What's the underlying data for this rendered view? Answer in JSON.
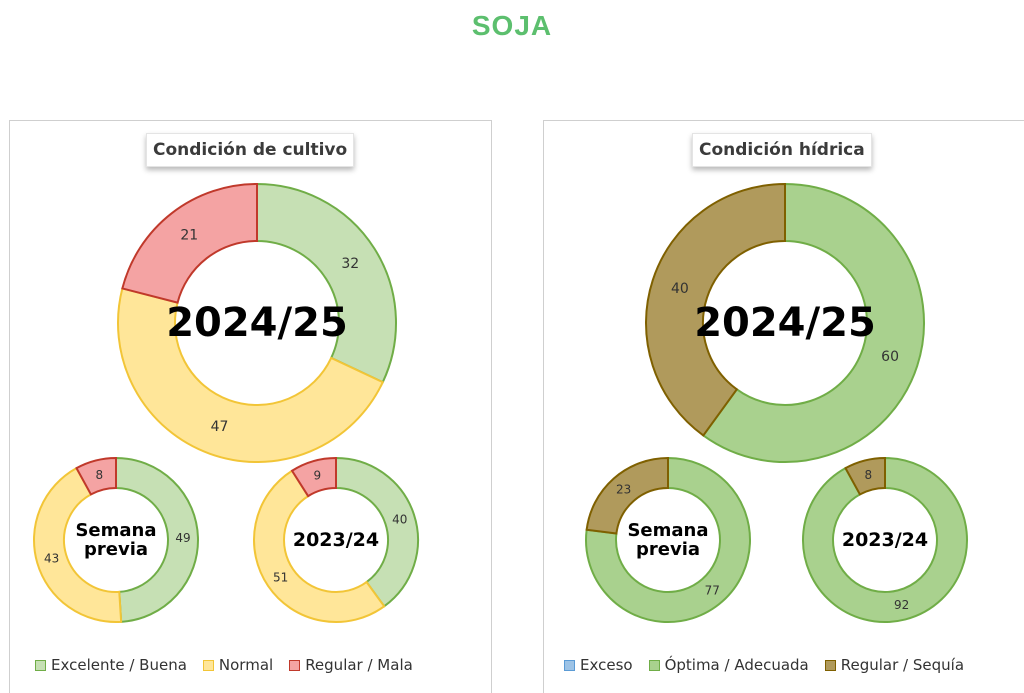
{
  "title": "SOJA",
  "colors": {
    "title": "#5cbf6e"
  },
  "chart_data": [
    {
      "type": "pie",
      "title": "Condición de cultivo",
      "legend_position": "bottom",
      "legend": [
        {
          "label": "Excelente / Buena",
          "fill": "#c6e0b4",
          "stroke": "#70ad47"
        },
        {
          "label": "Normal",
          "fill": "#ffe699",
          "stroke": "#f2c537"
        },
        {
          "label": "Regular / Mala",
          "fill": "#f4a3a3",
          "stroke": "#c0392b"
        }
      ],
      "donuts": [
        {
          "center_label": [
            "2024/25"
          ],
          "slices": [
            {
              "category": "Excelente / Buena",
              "value": 32,
              "label": "32"
            },
            {
              "category": "Normal",
              "value": 47,
              "label": "47"
            },
            {
              "category": "Regular / Mala",
              "value": 21,
              "label": "21"
            }
          ]
        },
        {
          "center_label": [
            "Semana",
            "previa"
          ],
          "slices": [
            {
              "category": "Excelente / Buena",
              "value": 49,
              "label": "49"
            },
            {
              "category": "Normal",
              "value": 43,
              "label": "43"
            },
            {
              "category": "Regular / Mala",
              "value": 8,
              "label": "8"
            }
          ]
        },
        {
          "center_label": [
            "2023/24"
          ],
          "slices": [
            {
              "category": "Excelente / Buena",
              "value": 40,
              "label": "40"
            },
            {
              "category": "Normal",
              "value": 51,
              "label": "51"
            },
            {
              "category": "Regular / Mala",
              "value": 9,
              "label": "9"
            }
          ]
        }
      ]
    },
    {
      "type": "pie",
      "title": "Condición hídrica",
      "legend_position": "bottom",
      "legend": [
        {
          "label": "Exceso",
          "fill": "#9dc3e6",
          "stroke": "#5b9bd5"
        },
        {
          "label": "Óptima / Adecuada",
          "fill": "#a9d18e",
          "stroke": "#70ad47"
        },
        {
          "label": "Regular / Sequía",
          "fill": "#b09a5c",
          "stroke": "#7f6000"
        }
      ],
      "donuts": [
        {
          "center_label": [
            "2024/25"
          ],
          "slices": [
            {
              "category": "Exceso",
              "value": 0,
              "label": ""
            },
            {
              "category": "Óptima / Adecuada",
              "value": 60,
              "label": "60"
            },
            {
              "category": "Regular / Sequía",
              "value": 40,
              "label": "40"
            }
          ]
        },
        {
          "center_label": [
            "Semana",
            "previa"
          ],
          "slices": [
            {
              "category": "Exceso",
              "value": 0,
              "label": "-"
            },
            {
              "category": "Óptima / Adecuada",
              "value": 77,
              "label": "77"
            },
            {
              "category": "Regular / Sequía",
              "value": 23,
              "label": "23"
            }
          ]
        },
        {
          "center_label": [
            "2023/24"
          ],
          "slices": [
            {
              "category": "Exceso",
              "value": 0,
              "label": ""
            },
            {
              "category": "Óptima / Adecuada",
              "value": 92,
              "label": "92"
            },
            {
              "category": "Regular / Sequía",
              "value": 8,
              "label": "8"
            }
          ]
        }
      ]
    }
  ]
}
